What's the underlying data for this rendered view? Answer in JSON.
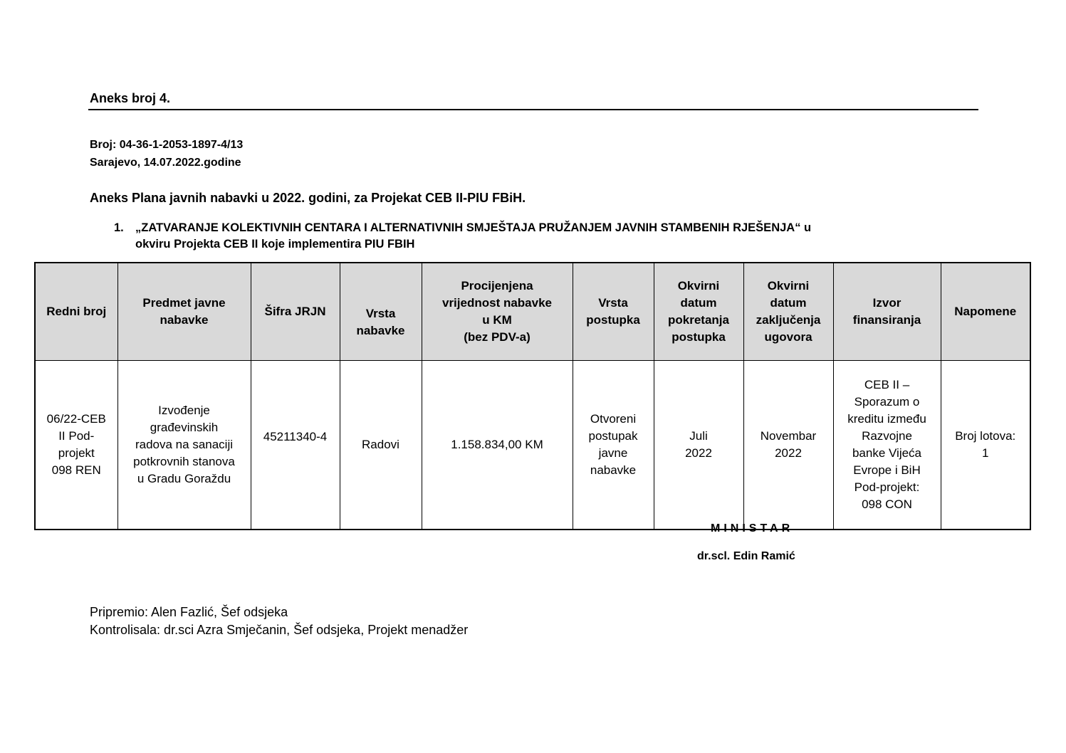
{
  "header": {
    "annex": "Aneks broj 4.",
    "number": "Broj: 04-36-1-2053-1897-4/13",
    "place_date": "Sarajevo, 14.07.2022.godine",
    "plan_title": "Aneks Plana javnih nabavki u 2022. godini, za Projekat CEB II-PIU FBiH."
  },
  "item": {
    "number": "1.",
    "text": "„ZATVARANJE KOLEKTIVNIH CENTARA I ALTERNATIVNIH SMJEŠTAJA PRUŽANJEM JAVNIH STAMBENIH RJEŠENJA“ u\nokviru Projekta  CEB II koje implementira PIU  FBIH"
  },
  "table": {
    "headers": [
      "Redni broj",
      "Predmet javne\nnabavke",
      "Šifra JRJN",
      "Vrsta\nnabavke",
      "Procijenjena\nvrijednost nabavke\nu KM\n(bez PDV-a)",
      "Vrsta\npostupka",
      "Okvirni\ndatum\npokretanja\npostupka",
      "Okvirni\ndatum\nzaključenja\nugovora",
      "Izvor\nfinansiranja",
      "Napomene"
    ],
    "rows": [
      [
        "06/22-CEB\nII Pod-\nprojekt\n098 REN",
        "Izvođenje\ngrađevinskih\nradova na sanaciji\npotkrovnih stanova\nu Gradu Goraždu",
        "45211340-4",
        "Radovi",
        "1.158.834,00 KM",
        "Otvoreni\npostupak\njavne\nnabavke",
        "Juli\n2022",
        "Novembar\n2022",
        "CEB II –\nSporazum o\nkreditu između\nRazvojne\nbanke Vijeća\nEvrope i BiH\nPod-projekt:\n098 CON",
        "Broj lotova:\n1"
      ]
    ]
  },
  "signature": {
    "title": "MINISTAR",
    "name": "dr.scl. Edin Ramić"
  },
  "footer": {
    "prepared": "Pripremio: Alen Fazlić, Šef odsjeka",
    "controlled": "Kontrolisala: dr.sci Azra Smječanin, Šef odsjeka, Projekt menadžer"
  }
}
